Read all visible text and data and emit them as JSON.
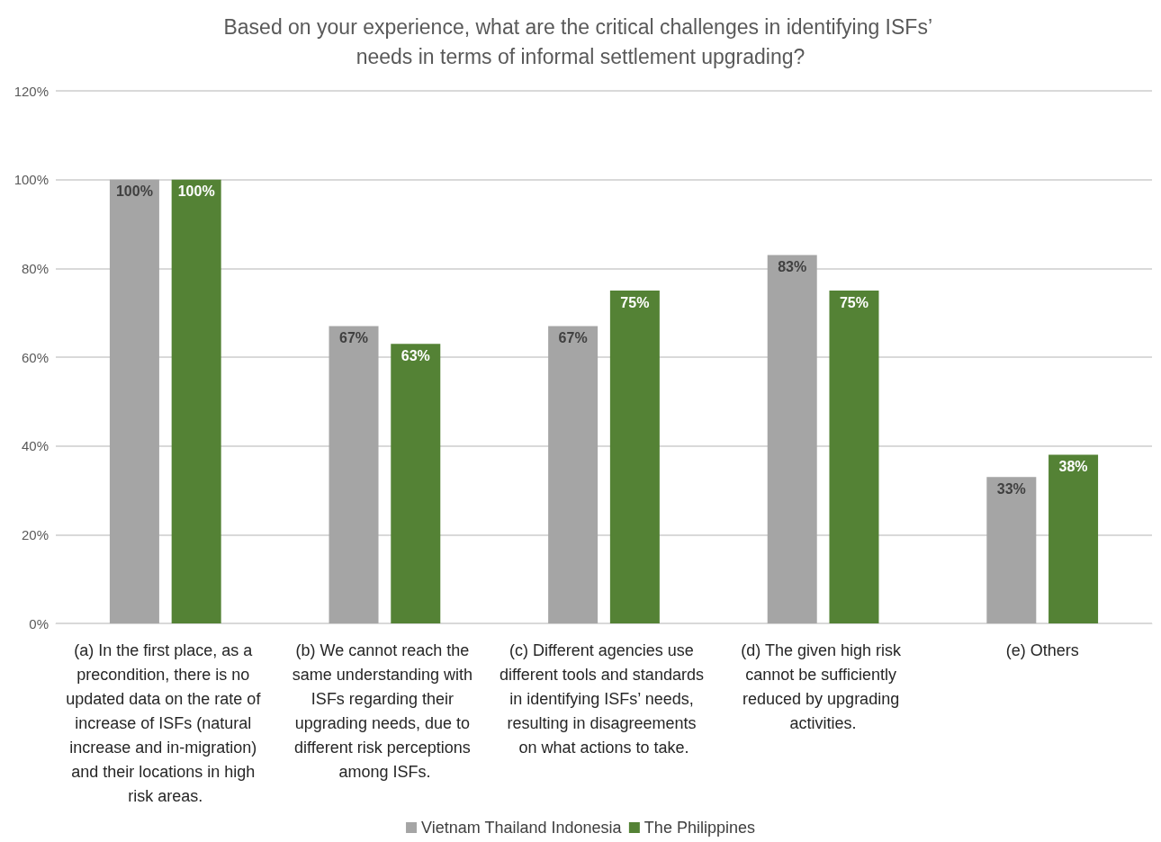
{
  "chart_data": {
    "type": "bar",
    "title": "Based on your experience, what are the critical challenges in identifying ISFs’ needs in terms of informal settlement upgrading?",
    "categories": [
      "(a) In the first place, as a precondition, there is no updated data on the rate of increase of ISFs (natural increase and in-migration) and their locations in high risk areas.",
      "(b) We cannot reach the same understanding with ISFs regarding their upgrading needs, due to different risk perceptions among ISFs.",
      "(c) Different agencies use different tools and standards in identifying ISFs’ needs, resulting in disagreements on what actions to take.",
      "(d) The given high risk cannot be sufficiently reduced by upgrading activities.",
      "(e) Others"
    ],
    "series": [
      {
        "name": "Vietnam Thailand Indonesia",
        "color": "#a5a5a5",
        "values": [
          100,
          67,
          67,
          83,
          33
        ],
        "value_labels": [
          "100%",
          "67%",
          "67%",
          "83%",
          "33%"
        ]
      },
      {
        "name": "The Philippines",
        "color": "#548235",
        "values": [
          100,
          63,
          75,
          75,
          38
        ],
        "value_labels": [
          "100%",
          "63%",
          "75%",
          "75%",
          "38%"
        ]
      }
    ],
    "ylim": [
      0,
      120
    ],
    "yticks": [
      {
        "value": 0,
        "label": "0%"
      },
      {
        "value": 20,
        "label": "20%"
      },
      {
        "value": 40,
        "label": "40%"
      },
      {
        "value": 60,
        "label": "60%"
      },
      {
        "value": 80,
        "label": "80%"
      },
      {
        "value": 100,
        "label": "100%"
      },
      {
        "value": 120,
        "label": "120%"
      }
    ],
    "grid": "y",
    "legend": "bottom"
  }
}
